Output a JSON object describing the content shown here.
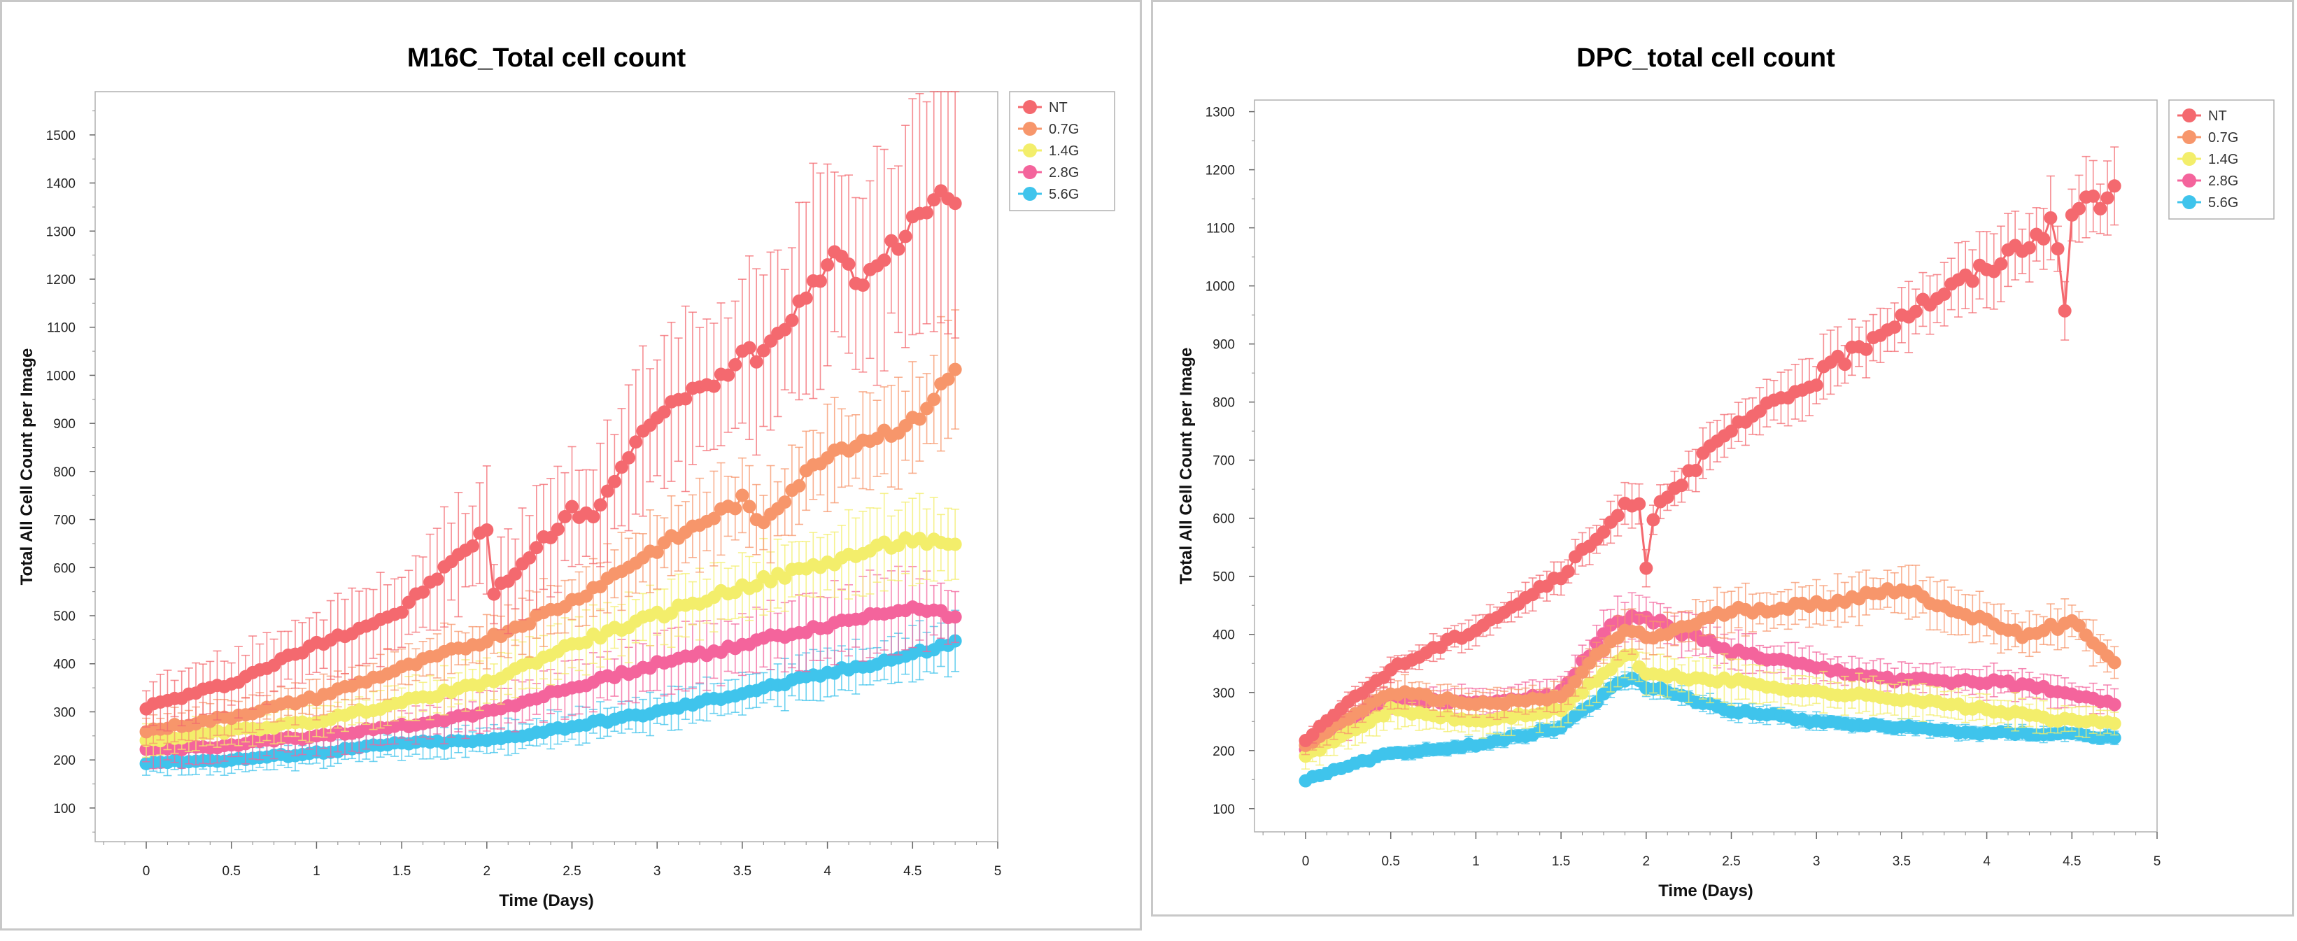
{
  "chart_data": [
    {
      "type": "line",
      "title": "M16C_Total cell count",
      "xlabel": "Time (Days)",
      "ylabel": "Total All Cell Count per Image",
      "xlim": [
        -0.3,
        5
      ],
      "ylim": [
        30,
        1590
      ],
      "xticks": [
        0,
        0.5,
        1,
        1.5,
        2,
        2.5,
        3,
        3.5,
        4,
        4.5,
        5
      ],
      "xtick_labels": [
        "0",
        "0.5",
        "1",
        "1.5",
        "2",
        "2.5",
        "3",
        "3.5",
        "4",
        "4.5",
        "5"
      ],
      "yticks": [
        100,
        200,
        300,
        400,
        500,
        600,
        700,
        800,
        900,
        1000,
        1100,
        1200,
        1300,
        1400,
        1500
      ],
      "ytick_labels": [
        "100",
        "200",
        "300",
        "400",
        "500",
        "600",
        "700",
        "800",
        "900",
        "1000",
        "1100",
        "1200",
        "1300",
        "1400",
        "1500"
      ],
      "legend_position": "top-right",
      "series": [
        {
          "name": "NT",
          "color": "#f4696f",
          "error_frac": 0.16,
          "keypoints": [
            [
              0,
              310
            ],
            [
              0.5,
              360
            ],
            [
              1,
              440
            ],
            [
              1.5,
              510
            ],
            [
              2,
              680
            ],
            [
              2.03,
              540
            ],
            [
              2.5,
              720
            ],
            [
              2.6,
              700
            ],
            [
              3,
              920
            ],
            [
              3.4,
              1000
            ],
            [
              3.5,
              1060
            ],
            [
              3.6,
              1040
            ],
            [
              4,
              1230
            ],
            [
              4.1,
              1260
            ],
            [
              4.2,
              1180
            ],
            [
              4.5,
              1320
            ],
            [
              4.7,
              1380
            ],
            [
              4.75,
              1370
            ]
          ]
        },
        {
          "name": "0.7G",
          "color": "#f7966b",
          "error_frac": 0.11,
          "keypoints": [
            [
              0,
              260
            ],
            [
              0.5,
              290
            ],
            [
              1,
              330
            ],
            [
              1.5,
              390
            ],
            [
              2,
              450
            ],
            [
              2.5,
              530
            ],
            [
              3,
              640
            ],
            [
              3.5,
              740
            ],
            [
              3.6,
              690
            ],
            [
              4,
              840
            ],
            [
              4.5,
              900
            ],
            [
              4.75,
              1010
            ]
          ]
        },
        {
          "name": "1.4G",
          "color": "#f3ee6b",
          "error_frac": 0.12,
          "keypoints": [
            [
              0,
              240
            ],
            [
              0.5,
              260
            ],
            [
              1,
              280
            ],
            [
              1.5,
              320
            ],
            [
              2,
              360
            ],
            [
              2.5,
              440
            ],
            [
              3,
              500
            ],
            [
              3.5,
              560
            ],
            [
              4,
              610
            ],
            [
              4.5,
              660
            ],
            [
              4.75,
              640
            ]
          ]
        },
        {
          "name": "2.8G",
          "color": "#f4649c",
          "error_frac": 0.14,
          "keypoints": [
            [
              0,
              220
            ],
            [
              0.5,
              230
            ],
            [
              1,
              250
            ],
            [
              1.5,
              270
            ],
            [
              2,
              300
            ],
            [
              2.5,
              350
            ],
            [
              3,
              400
            ],
            [
              3.5,
              440
            ],
            [
              4,
              480
            ],
            [
              4.5,
              520
            ],
            [
              4.75,
              500
            ]
          ]
        },
        {
          "name": "5.6G",
          "color": "#3fc4ec",
          "error_frac": 0.12,
          "keypoints": [
            [
              0,
              195
            ],
            [
              0.5,
              200
            ],
            [
              1,
              215
            ],
            [
              1.5,
              235
            ],
            [
              2,
              240
            ],
            [
              2.5,
              270
            ],
            [
              3,
              300
            ],
            [
              3.5,
              340
            ],
            [
              4,
              380
            ],
            [
              4.5,
              420
            ],
            [
              4.75,
              445
            ]
          ]
        }
      ]
    },
    {
      "type": "line",
      "title": "DPC_total cell count",
      "xlabel": "Time (Days)",
      "ylabel": "Total All Cell Count per Image",
      "xlim": [
        -0.3,
        5
      ],
      "ylim": [
        60,
        1320
      ],
      "xticks": [
        0,
        0.5,
        1,
        1.5,
        2,
        2.5,
        3,
        3.5,
        4,
        4.5,
        5
      ],
      "xtick_labels": [
        "0",
        "0.5",
        "1",
        "1.5",
        "2",
        "2.5",
        "3",
        "3.5",
        "4",
        "4.5",
        "5"
      ],
      "yticks": [
        100,
        200,
        300,
        400,
        500,
        600,
        700,
        800,
        900,
        1000,
        1100,
        1200,
        1300
      ],
      "ytick_labels": [
        "100",
        "200",
        "300",
        "400",
        "500",
        "600",
        "700",
        "800",
        "900",
        "1000",
        "1100",
        "1200",
        "1300"
      ],
      "legend_position": "top-right",
      "series": [
        {
          "name": "NT",
          "color": "#f4696f",
          "error_frac": 0.05,
          "keypoints": [
            [
              0,
              220
            ],
            [
              0.5,
              340
            ],
            [
              1,
              410
            ],
            [
              1.5,
              500
            ],
            [
              1.95,
              640
            ],
            [
              2.0,
              520
            ],
            [
              2.05,
              620
            ],
            [
              2.5,
              750
            ],
            [
              3,
              840
            ],
            [
              3.5,
              950
            ],
            [
              4,
              1030
            ],
            [
              4.4,
              1110
            ],
            [
              4.45,
              930
            ],
            [
              4.5,
              1120
            ],
            [
              4.6,
              1160
            ],
            [
              4.7,
              1130
            ],
            [
              4.75,
              1180
            ]
          ]
        },
        {
          "name": "0.7G",
          "color": "#f7966b",
          "error_frac": 0.08,
          "keypoints": [
            [
              0,
              210
            ],
            [
              0.5,
              300
            ],
            [
              1,
              280
            ],
            [
              1.5,
              290
            ],
            [
              1.7,
              360
            ],
            [
              1.9,
              410
            ],
            [
              2,
              390
            ],
            [
              2.5,
              440
            ],
            [
              3,
              450
            ],
            [
              3.5,
              480
            ],
            [
              4,
              420
            ],
            [
              4.2,
              400
            ],
            [
              4.5,
              420
            ],
            [
              4.7,
              370
            ],
            [
              4.75,
              350
            ]
          ]
        },
        {
          "name": "1.4G",
          "color": "#f3ee6b",
          "error_frac": 0.1,
          "keypoints": [
            [
              0,
              190
            ],
            [
              0.5,
              270
            ],
            [
              1,
              250
            ],
            [
              1.5,
              270
            ],
            [
              1.9,
              370
            ],
            [
              2,
              330
            ],
            [
              2.5,
              320
            ],
            [
              3,
              300
            ],
            [
              3.5,
              290
            ],
            [
              4,
              270
            ],
            [
              4.5,
              250
            ],
            [
              4.75,
              250
            ]
          ]
        },
        {
          "name": "2.8G",
          "color": "#f4649c",
          "error_frac": 0.08,
          "keypoints": [
            [
              0,
              200
            ],
            [
              0.5,
              290
            ],
            [
              1,
              280
            ],
            [
              1.5,
              300
            ],
            [
              1.8,
              420
            ],
            [
              2,
              430
            ],
            [
              2.5,
              370
            ],
            [
              3,
              340
            ],
            [
              3.5,
              320
            ],
            [
              4,
              320
            ],
            [
              4.5,
              300
            ],
            [
              4.75,
              280
            ]
          ]
        },
        {
          "name": "5.6G",
          "color": "#3fc4ec",
          "error_frac": 0.05,
          "keypoints": [
            [
              0,
              150
            ],
            [
              0.5,
              195
            ],
            [
              1,
              210
            ],
            [
              1.5,
              240
            ],
            [
              1.9,
              330
            ],
            [
              2,
              310
            ],
            [
              2.5,
              270
            ],
            [
              3,
              250
            ],
            [
              3.5,
              240
            ],
            [
              4,
              230
            ],
            [
              4.5,
              230
            ],
            [
              4.75,
              220
            ]
          ]
        }
      ]
    }
  ]
}
